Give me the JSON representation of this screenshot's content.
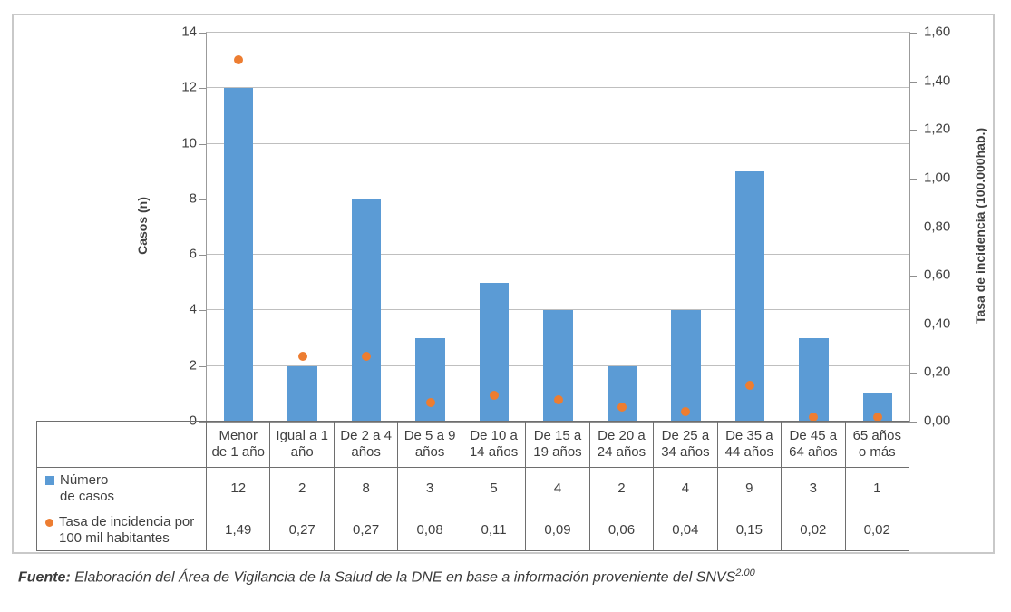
{
  "chart_data": {
    "type": "bar",
    "subtype": "combo bar + scatter on secondary axis",
    "categories": [
      "Menor de 1 año",
      "Igual a 1 año",
      "De 2 a 4 años",
      "De 5 a 9 años",
      "De 10 a 14 años",
      "De 15 a 19 años",
      "De 20 a 24 años",
      "De 25 a 34 años",
      "De 35 a 44 años",
      "De 45 a 64 años",
      "65 años o más"
    ],
    "categories_2line": [
      [
        "Menor",
        "de 1 año"
      ],
      [
        "Igual a 1",
        "año"
      ],
      [
        "De 2 a 4",
        "años"
      ],
      [
        "De 5 a 9",
        "años"
      ],
      [
        "De 10 a",
        "14 años"
      ],
      [
        "De 15 a",
        "19 años"
      ],
      [
        "De 20 a",
        "24 años"
      ],
      [
        "De 25 a",
        "34 años"
      ],
      [
        "De 35 a",
        "44 años"
      ],
      [
        "De 45 a",
        "64 años"
      ],
      [
        "65 años",
        "o más"
      ]
    ],
    "series": [
      {
        "name": "Número de casos",
        "type": "bar",
        "axis": "left",
        "color": "#5B9BD5",
        "values": [
          12,
          2,
          8,
          3,
          5,
          4,
          2,
          4,
          9,
          3,
          1
        ]
      },
      {
        "name": "Tasa de incidencia por 100 mil habitantes",
        "type": "scatter",
        "axis": "right",
        "color": "#ED7D31",
        "values": [
          1.49,
          0.27,
          0.27,
          0.08,
          0.11,
          0.09,
          0.06,
          0.04,
          0.15,
          0.02,
          0.02
        ]
      }
    ],
    "left_axis": {
      "label": "Casos (n)",
      "min": 0,
      "max": 14,
      "step": 2,
      "ticks": [
        "14",
        "12",
        "10",
        "8",
        "6",
        "4",
        "2",
        "0"
      ]
    },
    "right_axis": {
      "label": "Tasa de incidencia (100.000hab.)",
      "min": 0,
      "max": 1.6,
      "step": 0.2,
      "ticks": [
        "1,60",
        "1,40",
        "1,20",
        "1,00",
        "0,80",
        "0,60",
        "0,40",
        "0,20",
        "0,00"
      ]
    },
    "grid": true,
    "legend_position": "table-left"
  },
  "table": {
    "rows": [
      {
        "marker": "blue-square",
        "label_lines": [
          "Número",
          "de casos"
        ],
        "values": [
          "12",
          "2",
          "8",
          "3",
          "5",
          "4",
          "2",
          "4",
          "9",
          "3",
          "1"
        ]
      },
      {
        "marker": "orange-dot",
        "label_lines": [
          "Tasa de incidencia por",
          "100 mil habitantes"
        ],
        "values": [
          "1,49",
          "0,27",
          "0,27",
          "0,08",
          "0,11",
          "0,09",
          "0,06",
          "0,04",
          "0,15",
          "0,02",
          "0,02"
        ]
      }
    ]
  },
  "source_note": {
    "prefix": "Fuente:",
    "text": " Elaboración del Área de Vigilancia de la Salud de la DNE en base a información proveniente del SNVS",
    "superscript": "2.00"
  },
  "colors": {
    "bar": "#5B9BD5",
    "dot": "#ED7D31",
    "gridline": "#bfbfbf",
    "axis_line": "#8f8f8f",
    "table_border": "#6e6e6e",
    "frame_border": "#c9c9c9",
    "text": "#3f3f3f"
  }
}
